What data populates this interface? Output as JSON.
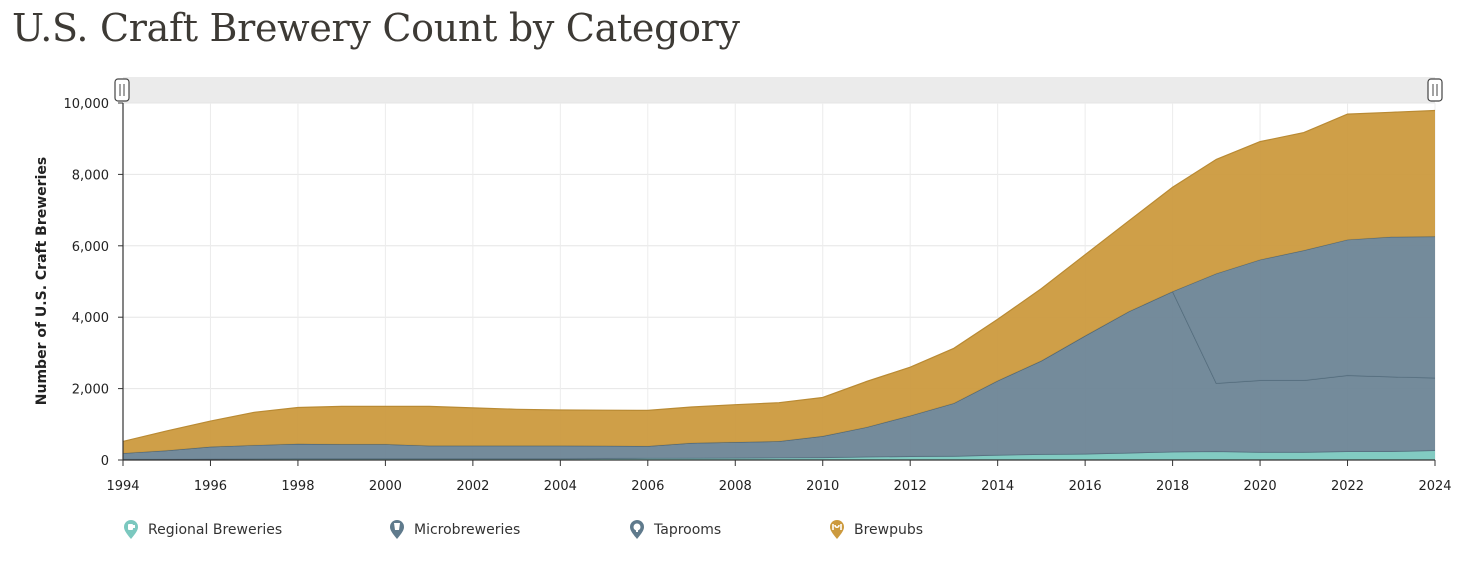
{
  "page": {
    "title": "U.S. Craft Brewery Count by Category"
  },
  "chart_data": {
    "type": "area",
    "stacked": true,
    "title": "U.S. Craft Brewery Count by Category",
    "xlabel": "",
    "ylabel": "Number of U.S. Craft Breweries",
    "x": [
      1994,
      1995,
      1996,
      1997,
      1998,
      1999,
      2000,
      2001,
      2002,
      2003,
      2004,
      2005,
      2006,
      2007,
      2008,
      2009,
      2010,
      2011,
      2012,
      2013,
      2014,
      2015,
      2016,
      2017,
      2018,
      2019,
      2020,
      2021,
      2022,
      2023,
      2024
    ],
    "xlim": [
      1994,
      2024
    ],
    "ylim": [
      0,
      10000
    ],
    "x_ticks": [
      "1994",
      "1996",
      "1998",
      "2000",
      "2002",
      "2004",
      "2006",
      "2008",
      "2010",
      "2012",
      "2014",
      "2016",
      "2018",
      "2020",
      "2022",
      "2024"
    ],
    "y_ticks": [
      "0",
      "2,000",
      "4,000",
      "6,000",
      "8,000",
      "10,000"
    ],
    "grid": true,
    "legend_position": "bottom-left",
    "series": [
      {
        "name": "Regional Breweries",
        "color": "#7bc8bf",
        "icon": "regional-brewery-icon",
        "values": [
          20,
          25,
          30,
          35,
          40,
          40,
          40,
          40,
          40,
          40,
          40,
          45,
          50,
          55,
          60,
          65,
          70,
          90,
          100,
          110,
          140,
          160,
          170,
          200,
          230,
          240,
          220,
          220,
          240,
          240,
          270
        ]
      },
      {
        "name": "Microbreweries",
        "color": "#6d8596",
        "icon": "microbrewery-icon",
        "values": [
          170,
          240,
          340,
          380,
          410,
          400,
          400,
          360,
          360,
          360,
          360,
          350,
          340,
          420,
          440,
          460,
          600,
          830,
          1140,
          1480,
          2080,
          2620,
          3310,
          3960,
          4490,
          1910,
          2010,
          2010,
          2130,
          2090,
          2030
        ]
      },
      {
        "name": "Taprooms",
        "color": "#6d8596",
        "icon": "taproom-icon",
        "values": [
          0,
          0,
          0,
          0,
          0,
          0,
          0,
          0,
          0,
          0,
          0,
          0,
          0,
          0,
          0,
          0,
          0,
          0,
          0,
          0,
          0,
          0,
          0,
          0,
          0,
          3070,
          3380,
          3640,
          3800,
          3920,
          3960
        ]
      },
      {
        "name": "Brewpubs",
        "color": "#cc9a3e",
        "icon": "brewpub-icon",
        "values": [
          330,
          550,
          720,
          920,
          1020,
          1060,
          1060,
          1100,
          1060,
          1020,
          1000,
          1000,
          1000,
          1010,
          1050,
          1080,
          1080,
          1280,
          1360,
          1540,
          1720,
          2020,
          2270,
          2540,
          2920,
          3200,
          3310,
          3300,
          3520,
          3490,
          3530
        ]
      }
    ]
  }
}
